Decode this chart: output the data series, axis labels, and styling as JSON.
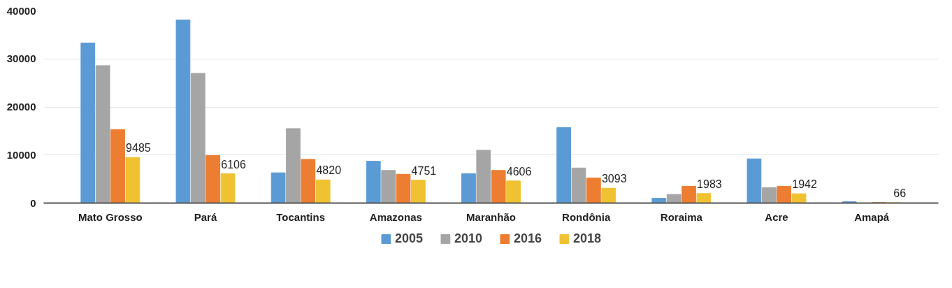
{
  "chart_data": {
    "type": "bar",
    "categories": [
      "Mato Grosso",
      "Pará",
      "Tocantins",
      "Amazonas",
      "Maranhão",
      "Rondônia",
      "Roraima",
      "Acre",
      "Amapá"
    ],
    "series": [
      {
        "name": "2005",
        "color": "#5b9bd5",
        "values": [
          33300,
          38100,
          6300,
          8700,
          6100,
          15700,
          1000,
          9200,
          300
        ]
      },
      {
        "name": "2010",
        "color": "#a5a5a5",
        "values": [
          28600,
          27000,
          15500,
          6800,
          11000,
          7300,
          1800,
          3200,
          0
        ]
      },
      {
        "name": "2016",
        "color": "#ed7d31",
        "values": [
          15300,
          9900,
          9100,
          6000,
          6800,
          5200,
          3500,
          3500,
          100
        ]
      },
      {
        "name": "2018",
        "color": "#f0c232",
        "values": [
          9485,
          6106,
          4820,
          4751,
          4606,
          3093,
          1983,
          1942,
          66
        ],
        "value_labels": [
          "9485",
          "6106",
          "4820",
          "4751",
          "4606",
          "3093",
          "1983",
          "1942",
          "66"
        ]
      }
    ],
    "ylim": [
      0,
      40000
    ],
    "yticks": [
      0,
      10000,
      20000,
      30000,
      40000
    ],
    "grid": "y",
    "legend": "bottom"
  }
}
